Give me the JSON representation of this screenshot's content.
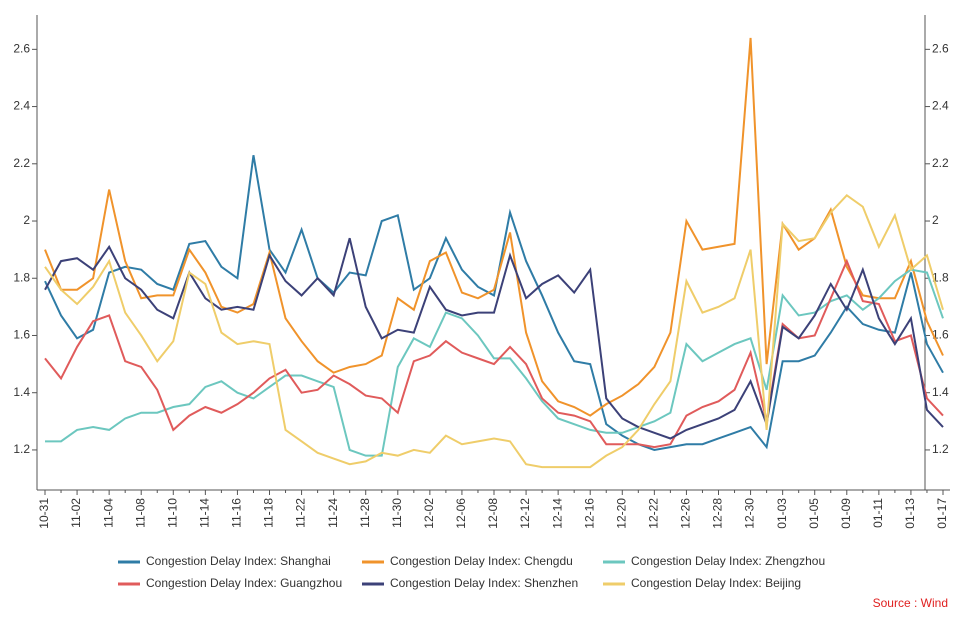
{
  "chart_data": {
    "type": "line",
    "categories": [
      "10-31",
      null,
      "11-02",
      null,
      "11-04",
      null,
      "11-08",
      null,
      "11-10",
      null,
      "11-14",
      null,
      "11-16",
      null,
      "11-18",
      null,
      "11-22",
      null,
      "11-24",
      null,
      "11-28",
      null,
      "11-30",
      null,
      "12-02",
      null,
      "12-06",
      null,
      "12-08",
      null,
      "12-12",
      null,
      "12-14",
      null,
      "12-16",
      null,
      "12-20",
      null,
      "12-22",
      null,
      "12-26",
      null,
      "12-28",
      null,
      "12-30",
      null,
      "01-03",
      null,
      "01-05",
      null,
      "01-09",
      null,
      "01-11",
      null,
      "01-13",
      null,
      "01-17"
    ],
    "series": [
      {
        "name": "Congestion Delay Index: Shanghai",
        "color": "#2f7ca6",
        "values": [
          1.79,
          1.67,
          1.59,
          1.62,
          1.82,
          1.84,
          1.83,
          1.78,
          1.76,
          1.92,
          1.93,
          1.84,
          1.8,
          2.23,
          1.9,
          1.82,
          1.97,
          1.8,
          1.75,
          1.82,
          1.81,
          2.0,
          2.02,
          1.76,
          1.8,
          1.94,
          1.83,
          1.77,
          1.74,
          2.03,
          1.86,
          1.74,
          1.61,
          1.51,
          1.5,
          1.29,
          1.25,
          1.22,
          1.2,
          1.21,
          1.22,
          1.22,
          1.24,
          1.26,
          1.28,
          1.21,
          1.51,
          1.51,
          1.53,
          1.61,
          1.7,
          1.64,
          1.62,
          1.61,
          1.82,
          1.57,
          1.47
        ]
      },
      {
        "name": "Congestion Delay Index: Chengdu",
        "color": "#f0932b",
        "values": [
          1.9,
          1.76,
          1.76,
          1.8,
          2.11,
          1.86,
          1.73,
          1.74,
          1.74,
          1.9,
          1.82,
          1.7,
          1.68,
          1.71,
          1.89,
          1.66,
          1.58,
          1.51,
          1.47,
          1.49,
          1.5,
          1.53,
          1.73,
          1.69,
          1.86,
          1.89,
          1.75,
          1.73,
          1.76,
          1.96,
          1.61,
          1.44,
          1.37,
          1.35,
          1.32,
          1.36,
          1.39,
          1.43,
          1.49,
          1.61,
          2.0,
          1.9,
          1.91,
          1.92,
          2.64,
          1.5,
          1.99,
          1.9,
          1.94,
          2.04,
          1.84,
          1.74,
          1.73,
          1.73,
          1.86,
          1.65,
          1.53
        ]
      },
      {
        "name": "Congestion Delay Index: Zhengzhou",
        "color": "#6cc7bf",
        "values": [
          1.23,
          1.23,
          1.27,
          1.28,
          1.27,
          1.31,
          1.33,
          1.33,
          1.35,
          1.36,
          1.42,
          1.44,
          1.4,
          1.38,
          1.42,
          1.46,
          1.46,
          1.44,
          1.42,
          1.2,
          1.18,
          1.18,
          1.49,
          1.59,
          1.56,
          1.68,
          1.66,
          1.6,
          1.52,
          1.52,
          1.45,
          1.37,
          1.31,
          1.29,
          1.27,
          1.26,
          1.26,
          1.28,
          1.3,
          1.33,
          1.57,
          1.51,
          1.54,
          1.57,
          1.59,
          1.41,
          1.74,
          1.67,
          1.68,
          1.72,
          1.74,
          1.69,
          1.73,
          1.79,
          1.83,
          1.82,
          1.66
        ]
      },
      {
        "name": "Congestion Delay Index: Guangzhou",
        "color": "#e05b5b",
        "values": [
          1.52,
          1.45,
          1.56,
          1.65,
          1.67,
          1.51,
          1.49,
          1.41,
          1.27,
          1.32,
          1.35,
          1.33,
          1.36,
          1.4,
          1.45,
          1.48,
          1.4,
          1.41,
          1.46,
          1.43,
          1.39,
          1.38,
          1.33,
          1.51,
          1.53,
          1.58,
          1.54,
          1.52,
          1.5,
          1.56,
          1.5,
          1.38,
          1.33,
          1.32,
          1.3,
          1.22,
          1.22,
          1.22,
          1.21,
          1.22,
          1.32,
          1.35,
          1.37,
          1.41,
          1.54,
          1.3,
          1.64,
          1.59,
          1.6,
          1.73,
          1.86,
          1.72,
          1.71,
          1.58,
          1.6,
          1.38,
          1.32
        ]
      },
      {
        "name": "Congestion Delay Index: Shenzhen",
        "color": "#3c4178",
        "values": [
          1.76,
          1.86,
          1.87,
          1.83,
          1.91,
          1.8,
          1.76,
          1.69,
          1.66,
          1.82,
          1.73,
          1.69,
          1.7,
          1.69,
          1.88,
          1.79,
          1.74,
          1.8,
          1.74,
          1.94,
          1.7,
          1.59,
          1.62,
          1.61,
          1.77,
          1.69,
          1.67,
          1.68,
          1.68,
          1.88,
          1.73,
          1.78,
          1.81,
          1.75,
          1.83,
          1.38,
          1.31,
          1.28,
          1.26,
          1.24,
          1.27,
          1.29,
          1.31,
          1.34,
          1.44,
          1.29,
          1.63,
          1.59,
          1.67,
          1.78,
          1.69,
          1.83,
          1.66,
          1.57,
          1.66,
          1.34,
          1.28
        ]
      },
      {
        "name": "Congestion Delay Index: Beijing",
        "color": "#efcd6a",
        "values": [
          1.84,
          1.76,
          1.71,
          1.77,
          1.86,
          1.68,
          1.6,
          1.51,
          1.58,
          1.82,
          1.78,
          1.61,
          1.57,
          1.58,
          1.57,
          1.27,
          1.23,
          1.19,
          1.17,
          1.15,
          1.16,
          1.19,
          1.18,
          1.2,
          1.19,
          1.25,
          1.22,
          1.23,
          1.24,
          1.23,
          1.15,
          1.14,
          1.14,
          1.14,
          1.14,
          1.18,
          1.21,
          1.27,
          1.36,
          1.44,
          1.79,
          1.68,
          1.7,
          1.73,
          1.9,
          1.27,
          1.99,
          1.93,
          1.94,
          2.03,
          2.09,
          2.05,
          1.91,
          2.02,
          1.83,
          1.88,
          1.69
        ]
      }
    ],
    "ylim": [
      1.06,
      2.72
    ],
    "yticks": [
      1.2,
      1.4,
      1.6,
      1.8,
      2,
      2.2,
      2.4,
      2.6
    ],
    "y2lim": [
      1.06,
      2.72
    ],
    "y2ticks": [
      1.2,
      1.4,
      1.6,
      1.8,
      2,
      2.2,
      2.4,
      2.6
    ],
    "source": "Source : Wind",
    "source_color": "#e02020"
  }
}
